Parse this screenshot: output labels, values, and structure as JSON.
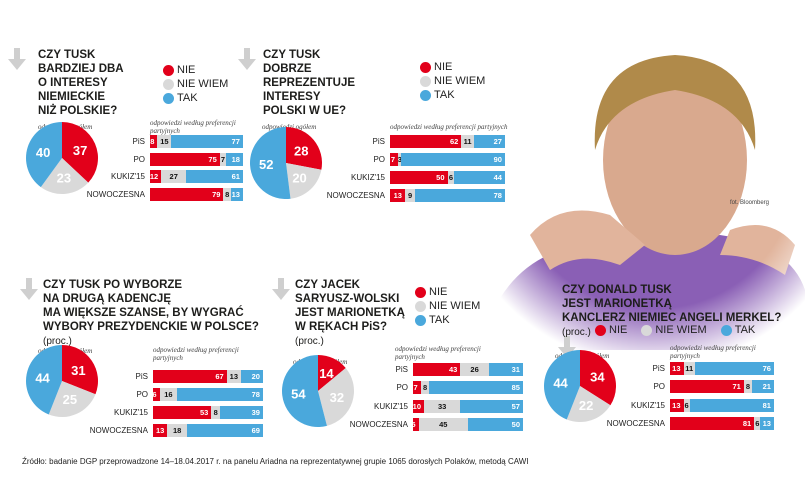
{
  "legend": {
    "nie": "NIE",
    "nie_wiem": "NIE WIEM",
    "tak": "TAK"
  },
  "colors": {
    "nie": "#e2001a",
    "nie_wiem": "#d9d9d9",
    "tak": "#4aa8dc"
  },
  "captions": {
    "pie": "odpowiedzi ogółem",
    "bars": "odpowiedzi według preferencji partyjnych"
  },
  "photo_credit": "fot. Bloomberg",
  "source": "Źródło: badanie DGP przeprowadzone 14–18.04.2017 r. na panelu Ariadna na reprezentatywnej grupie 1065 dorosłych Polaków, metodą CAWI",
  "chart_data": [
    {
      "type": "pie+bar",
      "title": [
        "CZY TUSK",
        "BARDZIEJ DBA",
        "O INTERESY",
        "NIEMIECKIE",
        "NIŻ POLSKIE?"
      ],
      "unit": "(proc.)",
      "overall": {
        "NIE": 37,
        "NIE WIEM": 23,
        "TAK": 40
      },
      "categories": [
        "PiS",
        "PO",
        "KUKIZ'15",
        "NOWOCZESNA"
      ],
      "series": [
        {
          "name": "NIE",
          "values": [
            8,
            75,
            12,
            79
          ]
        },
        {
          "name": "NIE WIEM",
          "values": [
            15,
            7,
            27,
            8
          ]
        },
        {
          "name": "TAK",
          "values": [
            77,
            18,
            61,
            13
          ]
        }
      ]
    },
    {
      "type": "pie+bar",
      "title": [
        "CZY TUSK",
        "DOBRZE",
        "REPREZENTUJE",
        "INTERESY",
        "POLSKI W UE?"
      ],
      "unit": "(proc.)",
      "overall": {
        "NIE": 28,
        "NIE WIEM": 20,
        "TAK": 52
      },
      "categories": [
        "PiS",
        "PO",
        "KUKIZ'15",
        "NOWOCZESNA"
      ],
      "series": [
        {
          "name": "NIE",
          "values": [
            62,
            7,
            50,
            13
          ]
        },
        {
          "name": "NIE WIEM",
          "values": [
            11,
            3,
            6,
            9
          ]
        },
        {
          "name": "TAK",
          "values": [
            27,
            90,
            44,
            78
          ]
        }
      ]
    },
    {
      "type": "pie+bar",
      "title": [
        "CZY TUSK PO WYBORZE",
        "NA DRUGĄ KADENCJĘ",
        "MA WIĘKSZE SZANSE, BY WYGRAĆ",
        "WYBORY PREZYDENCKIE W POLSCE?"
      ],
      "unit": "(proc.)",
      "overall": {
        "NIE": 31,
        "NIE WIEM": 25,
        "TAK": 44
      },
      "categories": [
        "PiS",
        "PO",
        "KUKIZ'15",
        "NOWOCZESNA"
      ],
      "series": [
        {
          "name": "NIE",
          "values": [
            67,
            6,
            53,
            13
          ]
        },
        {
          "name": "NIE WIEM",
          "values": [
            13,
            16,
            8,
            18
          ]
        },
        {
          "name": "TAK",
          "values": [
            20,
            78,
            39,
            69
          ]
        }
      ]
    },
    {
      "type": "pie+bar",
      "title": [
        "CZY JACEK",
        "SARYUSZ-WOLSKI",
        "JEST MARIONETKĄ",
        "W RĘKACH PiS?"
      ],
      "unit": "(proc.)",
      "overall": {
        "NIE": 14,
        "NIE WIEM": 32,
        "TAK": 54
      },
      "categories": [
        "PiS",
        "PO",
        "KUKIZ'15",
        "NOWOCZESNA"
      ],
      "series": [
        {
          "name": "NIE",
          "values": [
            43,
            7,
            10,
            5
          ]
        },
        {
          "name": "NIE WIEM",
          "values": [
            26,
            8,
            33,
            45
          ]
        },
        {
          "name": "TAK",
          "values": [
            31,
            85,
            57,
            50
          ]
        }
      ]
    },
    {
      "type": "pie+bar",
      "title": [
        "CZY DONALD TUSK",
        "JEST MARIONETKĄ",
        "KANCLERZ NIEMIEC ANGELI MERKEL?"
      ],
      "unit": "(proc.)",
      "overall": {
        "NIE": 34,
        "NIE WIEM": 22,
        "TAK": 44
      },
      "categories": [
        "PiS",
        "PO",
        "KUKIZ'15",
        "NOWOCZESNA"
      ],
      "series": [
        {
          "name": "NIE",
          "values": [
            13,
            71,
            13,
            81
          ]
        },
        {
          "name": "NIE WIEM",
          "values": [
            11,
            8,
            6,
            6
          ]
        },
        {
          "name": "TAK",
          "values": [
            76,
            21,
            81,
            13
          ]
        }
      ]
    }
  ]
}
